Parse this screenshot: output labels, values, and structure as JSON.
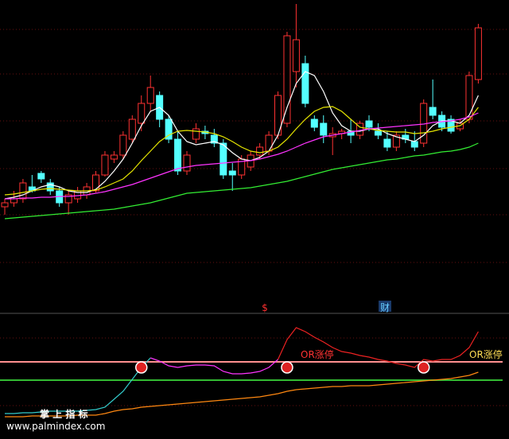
{
  "chart_data": [
    {
      "type": "candlestick",
      "ylim": [
        0,
        390
      ],
      "up_color": "#ff3232",
      "down_color": "#54ffff",
      "open": [
        130,
        135,
        140,
        155,
        172,
        160,
        150,
        135,
        140,
        145,
        150,
        170,
        190,
        195,
        215,
        235,
        260,
        270,
        240,
        215,
        175,
        215,
        225,
        220,
        210,
        175,
        170,
        180,
        195,
        200,
        220,
        235,
        300,
        310,
        240,
        235,
        218,
        222,
        225,
        220,
        238,
        225,
        215,
        205,
        220,
        212,
        210,
        255,
        245,
        240,
        228,
        240,
        290
      ],
      "high": [
        140,
        150,
        165,
        170,
        175,
        165,
        155,
        150,
        155,
        160,
        175,
        200,
        200,
        225,
        245,
        270,
        295,
        275,
        245,
        225,
        200,
        235,
        232,
        228,
        215,
        185,
        195,
        200,
        210,
        225,
        275,
        350,
        385,
        320,
        245,
        245,
        230,
        228,
        240,
        238,
        245,
        235,
        225,
        225,
        228,
        225,
        265,
        290,
        250,
        245,
        240,
        300,
        360
      ],
      "low": [
        120,
        130,
        135,
        148,
        160,
        145,
        130,
        120,
        135,
        140,
        148,
        168,
        185,
        190,
        210,
        225,
        250,
        230,
        210,
        170,
        170,
        210,
        215,
        205,
        165,
        150,
        165,
        175,
        190,
        195,
        215,
        230,
        280,
        255,
        225,
        210,
        195,
        215,
        210,
        215,
        225,
        215,
        200,
        200,
        210,
        200,
        205,
        240,
        225,
        222,
        225,
        235,
        285
      ],
      "close": [
        135,
        140,
        160,
        150,
        165,
        150,
        135,
        145,
        150,
        155,
        170,
        195,
        195,
        220,
        240,
        260,
        280,
        240,
        215,
        175,
        195,
        228,
        222,
        210,
        170,
        170,
        190,
        195,
        205,
        220,
        270,
        345,
        340,
        260,
        230,
        220,
        222,
        225,
        220,
        235,
        230,
        220,
        205,
        220,
        215,
        205,
        260,
        245,
        230,
        225,
        235,
        295,
        355
      ],
      "series": [
        {
          "color": "#ffffff",
          "values": [
            140,
            142,
            145,
            150,
            155,
            158,
            155,
            150,
            148,
            148,
            152,
            162,
            175,
            190,
            210,
            232,
            250,
            255,
            245,
            225,
            212,
            208,
            210,
            212,
            208,
            198,
            190,
            188,
            192,
            200,
            220,
            255,
            285,
            300,
            295,
            275,
            248,
            232,
            225,
            225,
            228,
            228,
            222,
            218,
            215,
            212,
            220,
            232,
            238,
            238,
            235,
            245,
            270
          ]
        },
        {
          "color": "#e6e600",
          "values": [
            145,
            146,
            148,
            150,
            152,
            153,
            152,
            151,
            150,
            150,
            151,
            155,
            160,
            165,
            175,
            188,
            200,
            212,
            220,
            225,
            226,
            225,
            224,
            222,
            218,
            212,
            205,
            200,
            198,
            200,
            205,
            215,
            228,
            240,
            250,
            255,
            256,
            250,
            240,
            230,
            228,
            226,
            225,
            224,
            224,
            222,
            223,
            225,
            228,
            230,
            232,
            240,
            255
          ]
        },
        {
          "color": "#ff33ff",
          "values": [
            140,
            140,
            141,
            141,
            142,
            142,
            143,
            143,
            144,
            145,
            147,
            149,
            152,
            155,
            158,
            162,
            166,
            170,
            174,
            178,
            180,
            182,
            183,
            184,
            185,
            186,
            187,
            188,
            190,
            193,
            196,
            200,
            205,
            210,
            214,
            218,
            220,
            222,
            224,
            226,
            228,
            229,
            230,
            231,
            232,
            233,
            234,
            236,
            237,
            238,
            240,
            243,
            248
          ]
        },
        {
          "color": "#33ee33",
          "values": [
            115,
            116,
            117,
            118,
            119,
            120,
            121,
            122,
            123,
            124,
            125,
            126,
            127,
            129,
            131,
            133,
            135,
            138,
            141,
            144,
            147,
            148,
            149,
            150,
            151,
            152,
            153,
            154,
            156,
            158,
            160,
            162,
            165,
            168,
            171,
            174,
            177,
            179,
            181,
            183,
            185,
            187,
            189,
            190,
            192,
            194,
            195,
            197,
            199,
            200,
            202,
            205,
            210
          ]
        }
      ]
    },
    {
      "type": "line",
      "ylim": [
        0,
        157
      ],
      "flags": [
        "$",
        "财"
      ],
      "annotations": [
        "OR涨停",
        "OR涨停",
        "掌 上 指 标",
        "www.palmindex.com"
      ],
      "hlines": [
        {
          "value": 97,
          "color": "#ff9090"
        },
        {
          "value": 74,
          "color": "#33bb33"
        }
      ],
      "signals": {
        "x": [
          15,
          31,
          46
        ],
        "values": [
          90,
          90,
          90
        ]
      },
      "series": [
        {
          "color": "#33cccc",
          "values": [
            32,
            32,
            33,
            33,
            34,
            35,
            35,
            35,
            35,
            36,
            37,
            40,
            50,
            60,
            75,
            90,
            102,
            null,
            null,
            null,
            null,
            null,
            null,
            null,
            null,
            null,
            null,
            null,
            null,
            null,
            null,
            null,
            null,
            null,
            null,
            null,
            null,
            null,
            null,
            null,
            null,
            null,
            null,
            null,
            null,
            null,
            null,
            null,
            null,
            null,
            null,
            null,
            null
          ]
        },
        {
          "color": "#ff33ff",
          "values": [
            null,
            null,
            null,
            null,
            null,
            null,
            null,
            null,
            null,
            null,
            null,
            null,
            null,
            null,
            null,
            null,
            102,
            98,
            92,
            90,
            92,
            93,
            93,
            92,
            85,
            82,
            82,
            83,
            85,
            90,
            100,
            null,
            null,
            null,
            null,
            null,
            null,
            null,
            null,
            null,
            null,
            null,
            null,
            null,
            null,
            null,
            null,
            null,
            null,
            null,
            null,
            null,
            null
          ]
        },
        {
          "color": "#ee2222",
          "values": [
            null,
            null,
            null,
            null,
            null,
            null,
            null,
            null,
            null,
            null,
            null,
            null,
            null,
            null,
            null,
            null,
            null,
            null,
            null,
            null,
            null,
            null,
            null,
            null,
            null,
            null,
            null,
            null,
            null,
            null,
            100,
            125,
            140,
            135,
            128,
            122,
            115,
            110,
            108,
            105,
            103,
            100,
            98,
            95,
            93,
            90,
            100,
            98,
            100,
            100,
            105,
            115,
            135
          ]
        },
        {
          "color": "#ff8811",
          "values": [
            28,
            28,
            28,
            29,
            29,
            29,
            29,
            29,
            30,
            30,
            30,
            32,
            35,
            37,
            38,
            40,
            41,
            42,
            43,
            44,
            45,
            46,
            47,
            48,
            49,
            50,
            51,
            52,
            53,
            55,
            57,
            60,
            62,
            63,
            64,
            65,
            66,
            66,
            67,
            67,
            67,
            68,
            69,
            70,
            71,
            72,
            73,
            74,
            75,
            76,
            78,
            80,
            84
          ]
        }
      ]
    }
  ]
}
